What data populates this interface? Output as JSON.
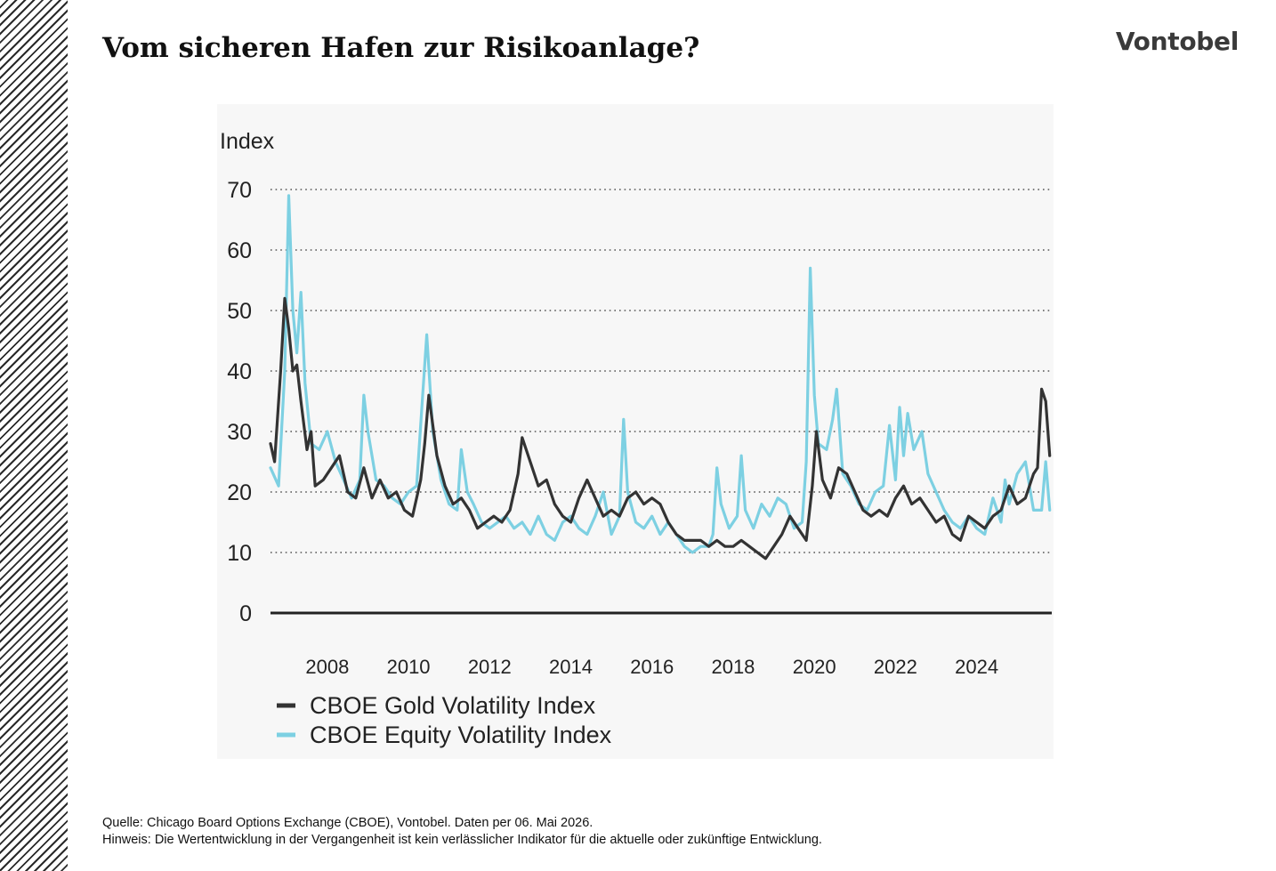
{
  "title": "Vom sicheren Hafen zur Risikoanlage?",
  "brand": "Vontobel",
  "footer": {
    "source": "Quelle: Chicago Board Options Exchange (CBOE), Vontobel. Daten per 06. Mai 2026.",
    "note": "Hinweis: Die Wertentwicklung in der Vergangenheit ist kein verlässlicher Indikator für die aktuelle oder zukünftige Entwicklung."
  },
  "colors": {
    "gold": "#333333",
    "equity": "#7dd0e2",
    "hatch": "#2a2a2a"
  },
  "chart_data": {
    "type": "line",
    "ylabel": "Index",
    "ylim": [
      0,
      70
    ],
    "xlim": [
      2007.1,
      2026.35
    ],
    "yticks": [
      0,
      10,
      20,
      30,
      40,
      50,
      60,
      70
    ],
    "xticks": [
      2008,
      2010,
      2012,
      2014,
      2016,
      2018,
      2020,
      2022,
      2024
    ],
    "grid": true,
    "legend": "bottom-left",
    "series": [
      {
        "name": "CBOE Gold Volatility Index",
        "color": "#333333",
        "points": [
          [
            2007.1,
            28
          ],
          [
            2007.2,
            25
          ],
          [
            2007.35,
            40
          ],
          [
            2007.45,
            52
          ],
          [
            2007.55,
            47
          ],
          [
            2007.65,
            40
          ],
          [
            2007.75,
            41
          ],
          [
            2007.85,
            35
          ],
          [
            2008.0,
            27
          ],
          [
            2008.1,
            30
          ],
          [
            2008.2,
            21
          ],
          [
            2008.4,
            22
          ],
          [
            2008.6,
            24
          ],
          [
            2008.8,
            26
          ],
          [
            2009.0,
            20
          ],
          [
            2009.2,
            19
          ],
          [
            2009.4,
            24
          ],
          [
            2009.6,
            19
          ],
          [
            2009.8,
            22
          ],
          [
            2010.0,
            19
          ],
          [
            2010.2,
            20
          ],
          [
            2010.4,
            17
          ],
          [
            2010.6,
            16
          ],
          [
            2010.8,
            22
          ],
          [
            2010.9,
            28
          ],
          [
            2011.0,
            36
          ],
          [
            2011.2,
            26
          ],
          [
            2011.4,
            21
          ],
          [
            2011.6,
            18
          ],
          [
            2011.8,
            19
          ],
          [
            2012.0,
            17
          ],
          [
            2012.2,
            14
          ],
          [
            2012.4,
            15
          ],
          [
            2012.6,
            16
          ],
          [
            2012.8,
            15
          ],
          [
            2013.0,
            17
          ],
          [
            2013.2,
            23
          ],
          [
            2013.3,
            29
          ],
          [
            2013.5,
            25
          ],
          [
            2013.7,
            21
          ],
          [
            2013.9,
            22
          ],
          [
            2014.1,
            18
          ],
          [
            2014.3,
            16
          ],
          [
            2014.5,
            15
          ],
          [
            2014.7,
            19
          ],
          [
            2014.9,
            22
          ],
          [
            2015.1,
            19
          ],
          [
            2015.3,
            16
          ],
          [
            2015.5,
            17
          ],
          [
            2015.7,
            16
          ],
          [
            2015.9,
            19
          ],
          [
            2016.1,
            20
          ],
          [
            2016.3,
            18
          ],
          [
            2016.5,
            19
          ],
          [
            2016.7,
            18
          ],
          [
            2016.9,
            15
          ],
          [
            2017.1,
            13
          ],
          [
            2017.3,
            12
          ],
          [
            2017.5,
            12
          ],
          [
            2017.7,
            12
          ],
          [
            2017.9,
            11
          ],
          [
            2018.1,
            12
          ],
          [
            2018.3,
            11
          ],
          [
            2018.5,
            11
          ],
          [
            2018.7,
            12
          ],
          [
            2018.9,
            11
          ],
          [
            2019.1,
            10
          ],
          [
            2019.3,
            9
          ],
          [
            2019.5,
            11
          ],
          [
            2019.7,
            13
          ],
          [
            2019.9,
            16
          ],
          [
            2020.1,
            14
          ],
          [
            2020.3,
            12
          ],
          [
            2020.45,
            21
          ],
          [
            2020.55,
            30
          ],
          [
            2020.7,
            22
          ],
          [
            2020.9,
            19
          ],
          [
            2021.1,
            24
          ],
          [
            2021.3,
            23
          ],
          [
            2021.5,
            20
          ],
          [
            2021.7,
            17
          ],
          [
            2021.9,
            16
          ],
          [
            2022.1,
            17
          ],
          [
            2022.3,
            16
          ],
          [
            2022.5,
            19
          ],
          [
            2022.7,
            21
          ],
          [
            2022.9,
            18
          ],
          [
            2023.1,
            19
          ],
          [
            2023.3,
            17
          ],
          [
            2023.5,
            15
          ],
          [
            2023.7,
            16
          ],
          [
            2023.9,
            13
          ],
          [
            2024.1,
            12
          ],
          [
            2024.3,
            16
          ],
          [
            2024.5,
            15
          ],
          [
            2024.7,
            14
          ],
          [
            2024.9,
            16
          ],
          [
            2025.1,
            17
          ],
          [
            2025.3,
            21
          ],
          [
            2025.5,
            18
          ],
          [
            2025.7,
            19
          ],
          [
            2025.9,
            23
          ],
          [
            2026.0,
            24
          ],
          [
            2026.1,
            37
          ],
          [
            2026.2,
            35
          ],
          [
            2026.3,
            26
          ]
        ]
      },
      {
        "name": "CBOE Equity Volatility Index",
        "color": "#7dd0e2",
        "points": [
          [
            2007.1,
            24
          ],
          [
            2007.3,
            21
          ],
          [
            2007.45,
            40
          ],
          [
            2007.55,
            69
          ],
          [
            2007.65,
            50
          ],
          [
            2007.75,
            43
          ],
          [
            2007.85,
            53
          ],
          [
            2007.95,
            38
          ],
          [
            2008.1,
            28
          ],
          [
            2008.3,
            27
          ],
          [
            2008.5,
            30
          ],
          [
            2008.7,
            25
          ],
          [
            2008.9,
            22
          ],
          [
            2009.1,
            19
          ],
          [
            2009.3,
            22
          ],
          [
            2009.4,
            36
          ],
          [
            2009.5,
            30
          ],
          [
            2009.7,
            22
          ],
          [
            2009.9,
            21
          ],
          [
            2010.1,
            19
          ],
          [
            2010.3,
            18
          ],
          [
            2010.5,
            20
          ],
          [
            2010.7,
            21
          ],
          [
            2010.85,
            36
          ],
          [
            2010.95,
            46
          ],
          [
            2011.1,
            30
          ],
          [
            2011.3,
            22
          ],
          [
            2011.5,
            18
          ],
          [
            2011.7,
            17
          ],
          [
            2011.8,
            27
          ],
          [
            2011.95,
            20
          ],
          [
            2012.1,
            18
          ],
          [
            2012.3,
            15
          ],
          [
            2012.5,
            14
          ],
          [
            2012.7,
            15
          ],
          [
            2012.9,
            16
          ],
          [
            2013.1,
            14
          ],
          [
            2013.3,
            15
          ],
          [
            2013.5,
            13
          ],
          [
            2013.7,
            16
          ],
          [
            2013.9,
            13
          ],
          [
            2014.1,
            12
          ],
          [
            2014.3,
            15
          ],
          [
            2014.5,
            16
          ],
          [
            2014.7,
            14
          ],
          [
            2014.9,
            13
          ],
          [
            2015.1,
            16
          ],
          [
            2015.3,
            20
          ],
          [
            2015.5,
            13
          ],
          [
            2015.7,
            16
          ],
          [
            2015.8,
            32
          ],
          [
            2015.9,
            20
          ],
          [
            2016.1,
            15
          ],
          [
            2016.3,
            14
          ],
          [
            2016.5,
            16
          ],
          [
            2016.7,
            13
          ],
          [
            2016.9,
            15
          ],
          [
            2017.1,
            13
          ],
          [
            2017.3,
            11
          ],
          [
            2017.5,
            10
          ],
          [
            2017.7,
            11
          ],
          [
            2017.9,
            11
          ],
          [
            2018.0,
            13
          ],
          [
            2018.1,
            24
          ],
          [
            2018.2,
            18
          ],
          [
            2018.4,
            14
          ],
          [
            2018.6,
            16
          ],
          [
            2018.7,
            26
          ],
          [
            2018.8,
            17
          ],
          [
            2019.0,
            14
          ],
          [
            2019.2,
            18
          ],
          [
            2019.4,
            16
          ],
          [
            2019.6,
            19
          ],
          [
            2019.8,
            18
          ],
          [
            2020.0,
            14
          ],
          [
            2020.2,
            15
          ],
          [
            2020.3,
            25
          ],
          [
            2020.4,
            57
          ],
          [
            2020.5,
            36
          ],
          [
            2020.6,
            28
          ],
          [
            2020.8,
            27
          ],
          [
            2020.95,
            32
          ],
          [
            2021.05,
            37
          ],
          [
            2021.2,
            23
          ],
          [
            2021.4,
            21
          ],
          [
            2021.6,
            18
          ],
          [
            2021.8,
            17
          ],
          [
            2022.0,
            20
          ],
          [
            2022.2,
            21
          ],
          [
            2022.35,
            31
          ],
          [
            2022.5,
            22
          ],
          [
            2022.6,
            34
          ],
          [
            2022.7,
            26
          ],
          [
            2022.8,
            33
          ],
          [
            2022.95,
            27
          ],
          [
            2023.15,
            30
          ],
          [
            2023.3,
            23
          ],
          [
            2023.5,
            20
          ],
          [
            2023.7,
            17
          ],
          [
            2023.9,
            15
          ],
          [
            2024.1,
            14
          ],
          [
            2024.3,
            16
          ],
          [
            2024.5,
            14
          ],
          [
            2024.7,
            13
          ],
          [
            2024.9,
            19
          ],
          [
            2025.1,
            15
          ],
          [
            2025.2,
            22
          ],
          [
            2025.3,
            18
          ],
          [
            2025.5,
            23
          ],
          [
            2025.7,
            25
          ],
          [
            2025.9,
            17
          ],
          [
            2026.1,
            17
          ],
          [
            2026.2,
            25
          ],
          [
            2026.3,
            17
          ]
        ]
      }
    ]
  }
}
